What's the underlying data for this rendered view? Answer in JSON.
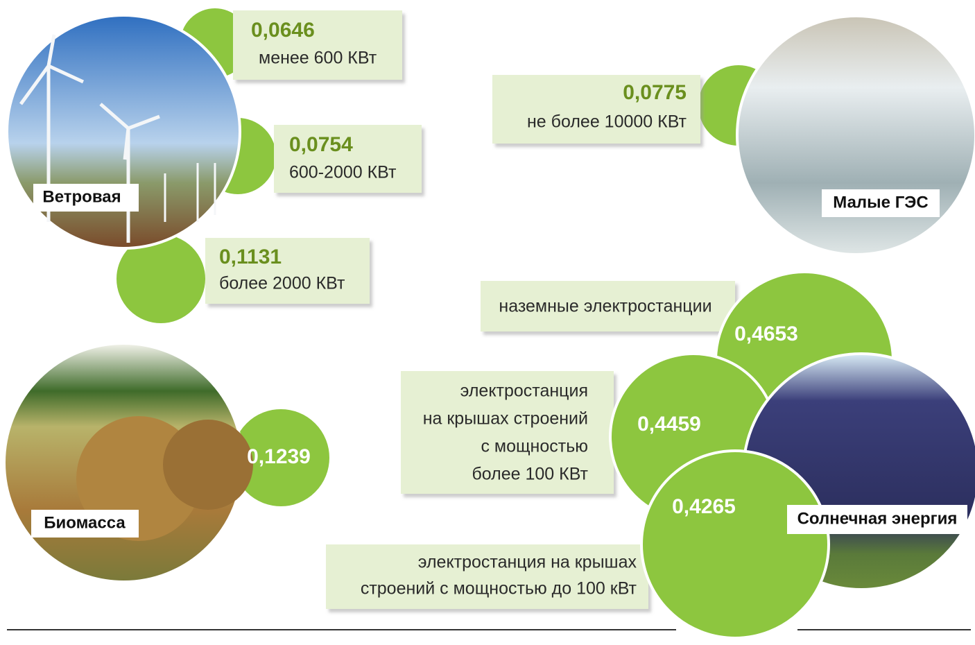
{
  "groups": [
    {
      "label": "Ветровая",
      "items": [
        {
          "value": "0,0646",
          "description": [
            "менее 600 КВт"
          ]
        },
        {
          "value": "0,0754",
          "description": [
            "600-2000 КВт"
          ]
        },
        {
          "value": "0,1131",
          "description": [
            "более 2000 КВт"
          ]
        }
      ]
    },
    {
      "label": "Малые ГЭС",
      "items": [
        {
          "value": "0,0775",
          "description": [
            "не более 10000 КВт"
          ]
        }
      ]
    },
    {
      "label": "Биомасса",
      "items": [
        {
          "value": "0,1239"
        }
      ]
    },
    {
      "label": "Солнечная энергия",
      "items": [
        {
          "value": "0,4653",
          "description": [
            "наземные электростанции"
          ]
        },
        {
          "value": "0,4459",
          "description": [
            "электростанция",
            "на крышах строений",
            "с мощностью",
            "более 100 КВт"
          ]
        },
        {
          "value": "0,4265",
          "description": [
            "электростанция на крышах",
            "строений с мощностью до 100 кВт"
          ]
        }
      ]
    }
  ]
}
